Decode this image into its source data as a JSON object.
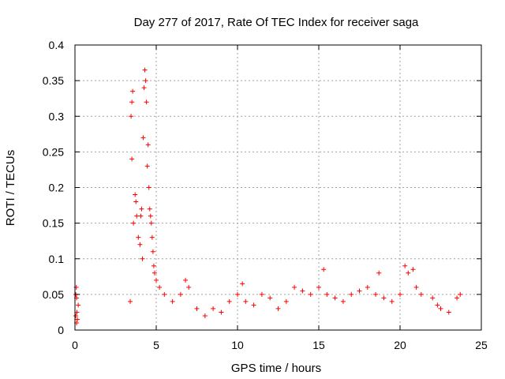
{
  "chart_data": {
    "type": "scatter",
    "title": "Day 277 of 2017, Rate Of TEC Index for receiver saga",
    "xlabel": "GPS time / hours",
    "ylabel": "ROTI / TECUs",
    "xlim": [
      0,
      25
    ],
    "ylim": [
      0,
      0.4
    ],
    "x_ticks": [
      0,
      5,
      10,
      15,
      20,
      25
    ],
    "x_tick_labels": [
      "0",
      "5",
      "10",
      "15",
      "20",
      "25"
    ],
    "y_ticks": [
      0,
      0.05,
      0.1,
      0.15,
      0.2,
      0.25,
      0.3,
      0.35,
      0.4
    ],
    "y_tick_labels": [
      "0",
      "0.05",
      "0.1",
      "0.15",
      "0.2",
      "0.25",
      "0.3",
      "0.35",
      "0.4"
    ],
    "grid": true,
    "marker": "+",
    "color": "#ff0000",
    "series": [
      {
        "name": "ROTI",
        "points": [
          [
            0.05,
            0.02
          ],
          [
            0.08,
            0.06
          ],
          [
            0.1,
            0.045
          ],
          [
            0.12,
            0.025
          ],
          [
            0.15,
            0.015
          ],
          [
            0.2,
            0.035
          ],
          [
            0.05,
            0.05
          ],
          [
            0.1,
            0.01
          ],
          [
            3.4,
            0.04
          ],
          [
            3.45,
            0.3
          ],
          [
            3.5,
            0.32
          ],
          [
            3.55,
            0.335
          ],
          [
            3.5,
            0.24
          ],
          [
            3.6,
            0.15
          ],
          [
            3.7,
            0.19
          ],
          [
            3.75,
            0.18
          ],
          [
            3.8,
            0.16
          ],
          [
            3.9,
            0.13
          ],
          [
            4.0,
            0.12
          ],
          [
            4.05,
            0.16
          ],
          [
            4.1,
            0.17
          ],
          [
            4.15,
            0.1
          ],
          [
            4.2,
            0.27
          ],
          [
            4.25,
            0.34
          ],
          [
            4.3,
            0.365
          ],
          [
            4.35,
            0.35
          ],
          [
            4.4,
            0.32
          ],
          [
            4.45,
            0.23
          ],
          [
            4.5,
            0.26
          ],
          [
            4.55,
            0.2
          ],
          [
            4.6,
            0.17
          ],
          [
            4.65,
            0.16
          ],
          [
            4.7,
            0.15
          ],
          [
            4.75,
            0.13
          ],
          [
            4.8,
            0.11
          ],
          [
            4.85,
            0.09
          ],
          [
            4.9,
            0.08
          ],
          [
            5.0,
            0.07
          ],
          [
            5.2,
            0.06
          ],
          [
            5.5,
            0.05
          ],
          [
            6.0,
            0.04
          ],
          [
            6.5,
            0.05
          ],
          [
            6.8,
            0.07
          ],
          [
            7.0,
            0.06
          ],
          [
            7.5,
            0.03
          ],
          [
            8.0,
            0.02
          ],
          [
            8.5,
            0.03
          ],
          [
            9.0,
            0.025
          ],
          [
            9.5,
            0.04
          ],
          [
            10.0,
            0.05
          ],
          [
            10.3,
            0.065
          ],
          [
            10.5,
            0.04
          ],
          [
            11.0,
            0.035
          ],
          [
            11.5,
            0.05
          ],
          [
            12.0,
            0.045
          ],
          [
            12.5,
            0.03
          ],
          [
            13.0,
            0.04
          ],
          [
            13.5,
            0.06
          ],
          [
            14.0,
            0.055
          ],
          [
            14.5,
            0.05
          ],
          [
            15.0,
            0.06
          ],
          [
            15.3,
            0.085
          ],
          [
            15.5,
            0.05
          ],
          [
            16.0,
            0.045
          ],
          [
            16.5,
            0.04
          ],
          [
            17.0,
            0.05
          ],
          [
            17.5,
            0.055
          ],
          [
            18.0,
            0.06
          ],
          [
            18.5,
            0.05
          ],
          [
            18.7,
            0.08
          ],
          [
            19.0,
            0.045
          ],
          [
            19.5,
            0.04
          ],
          [
            20.0,
            0.05
          ],
          [
            20.3,
            0.09
          ],
          [
            20.5,
            0.08
          ],
          [
            20.8,
            0.085
          ],
          [
            21.0,
            0.06
          ],
          [
            21.3,
            0.05
          ],
          [
            22.0,
            0.045
          ],
          [
            22.3,
            0.035
          ],
          [
            22.5,
            0.03
          ],
          [
            23.0,
            0.025
          ],
          [
            23.5,
            0.045
          ],
          [
            23.7,
            0.05
          ]
        ]
      }
    ]
  }
}
